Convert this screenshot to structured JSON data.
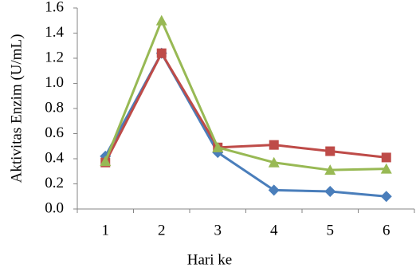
{
  "chart_data": {
    "type": "line",
    "x_label": "Hari ke",
    "y_label": "Aktivitas Enzim (U/mL)",
    "categories": [
      "1",
      "2",
      "3",
      "4",
      "5",
      "6"
    ],
    "series": [
      {
        "color": "#4a7ebb",
        "marker": "diamond",
        "values": [
          0.42,
          1.24,
          0.45,
          0.15,
          0.14,
          0.1
        ]
      },
      {
        "color": "#be4b48",
        "marker": "square",
        "values": [
          0.37,
          1.24,
          0.49,
          0.51,
          0.46,
          0.41
        ]
      },
      {
        "color": "#98b954",
        "marker": "triangle",
        "values": [
          0.38,
          1.5,
          0.49,
          0.37,
          0.31,
          0.32
        ]
      }
    ],
    "ylim": [
      0,
      1.6
    ],
    "yticks": [
      {
        "value": 0,
        "label": "0.0"
      },
      0.2,
      0.4,
      0.6,
      0.8,
      {
        "value": 1,
        "label": "1.0"
      },
      1.2,
      1.4,
      1.6
    ],
    "grid": false
  }
}
